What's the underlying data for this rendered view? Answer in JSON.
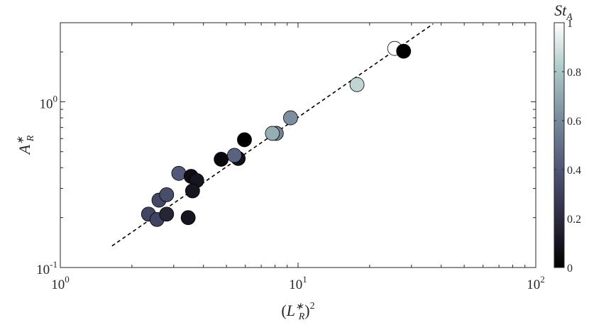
{
  "chart_data": {
    "type": "scatter",
    "xscale": "log",
    "yscale": "log",
    "xlim": [
      1,
      100
    ],
    "ylim": [
      0.1,
      3
    ],
    "xlabel": "(L_R^*)^2",
    "ylabel": "A_R^*",
    "x_ticks": [
      {
        "value": 1,
        "base": "10",
        "exp": "0"
      },
      {
        "value": 10,
        "base": "10",
        "exp": "1"
      },
      {
        "value": 100,
        "base": "10",
        "exp": "2"
      }
    ],
    "y_ticks": [
      {
        "value": 0.1,
        "base": "10",
        "exp": "-1"
      },
      {
        "value": 1,
        "base": "10",
        "exp": "0"
      }
    ],
    "grid": false,
    "fit_line": {
      "style": "dashed",
      "color": "#000000",
      "x": [
        1.65,
        37
      ],
      "y": [
        0.135,
        2.95
      ]
    },
    "colorbar": {
      "label": "St_A",
      "range": [
        0,
        1
      ],
      "ticks": [
        "0",
        "0.2",
        "0.4",
        "0.6",
        "0.8",
        "1"
      ],
      "colors": [
        "#000000",
        "#2b2b40",
        "#4f5575",
        "#78899a",
        "#a9c6c6",
        "#ffffff"
      ]
    },
    "points": [
      {
        "x": 2.35,
        "y": 0.21,
        "c": 0.33
      },
      {
        "x": 2.55,
        "y": 0.195,
        "c": 0.32
      },
      {
        "x": 2.6,
        "y": 0.255,
        "c": 0.34
      },
      {
        "x": 2.8,
        "y": 0.21,
        "c": 0.17
      },
      {
        "x": 2.8,
        "y": 0.275,
        "c": 0.36
      },
      {
        "x": 3.15,
        "y": 0.37,
        "c": 0.42
      },
      {
        "x": 3.45,
        "y": 0.2,
        "c": 0.1
      },
      {
        "x": 3.55,
        "y": 0.355,
        "c": 0.06
      },
      {
        "x": 3.75,
        "y": 0.335,
        "c": 0.1
      },
      {
        "x": 3.6,
        "y": 0.29,
        "c": 0.1
      },
      {
        "x": 4.75,
        "y": 0.45,
        "c": 0.04
      },
      {
        "x": 5.6,
        "y": 0.455,
        "c": 0.08
      },
      {
        "x": 5.4,
        "y": 0.475,
        "c": 0.45
      },
      {
        "x": 5.95,
        "y": 0.59,
        "c": 0.0
      },
      {
        "x": 8.1,
        "y": 0.645,
        "c": 0.58
      },
      {
        "x": 7.8,
        "y": 0.645,
        "c": 0.72
      },
      {
        "x": 9.3,
        "y": 0.8,
        "c": 0.62
      },
      {
        "x": 17.7,
        "y": 1.27,
        "c": 0.85
      },
      {
        "x": 25.5,
        "y": 2.1,
        "c": 1.0
      },
      {
        "x": 27.8,
        "y": 2.02,
        "c": 0.0
      }
    ]
  }
}
